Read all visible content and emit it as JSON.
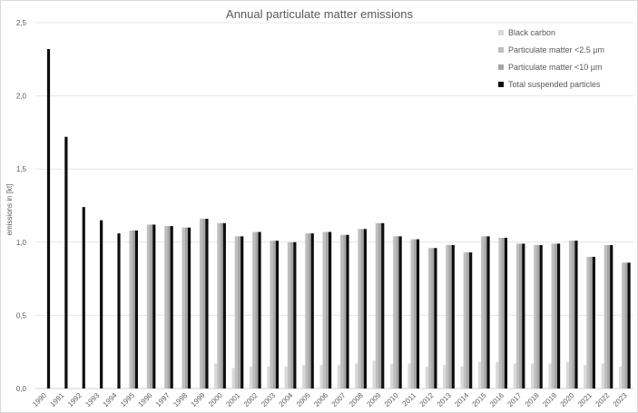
{
  "chart_data": {
    "type": "bar",
    "title": "Annual particulate matter emissions",
    "xlabel": "",
    "ylabel": "emissions in [kt]",
    "ylim": [
      0,
      2.5
    ],
    "yticks": [
      "0,0",
      "0,5",
      "1,0",
      "1,5",
      "2,0",
      "2,5"
    ],
    "grid": true,
    "legend_position": "top-right",
    "categories": [
      "1990",
      "1991",
      "1992",
      "1993",
      "1994",
      "1995",
      "1996",
      "1997",
      "1998",
      "1999",
      "2000",
      "2001",
      "2002",
      "2003",
      "2004",
      "2005",
      "2006",
      "2007",
      "2008",
      "2009",
      "2010",
      "2011",
      "2012",
      "2013",
      "2014",
      "2015",
      "2016",
      "2017",
      "2018",
      "2019",
      "2020",
      "2021",
      "2022",
      "2023"
    ],
    "series": [
      {
        "name": "Black carbon",
        "color": "#d9d9d9",
        "values": [
          null,
          null,
          null,
          null,
          null,
          null,
          null,
          null,
          null,
          null,
          0.17,
          0.14,
          0.15,
          0.15,
          0.15,
          0.16,
          0.16,
          0.16,
          0.17,
          0.19,
          0.17,
          0.17,
          0.15,
          0.16,
          0.15,
          0.18,
          0.18,
          0.17,
          0.17,
          0.17,
          0.18,
          0.16,
          0.17,
          0.15
        ]
      },
      {
        "name": "Particulate matter <2.5 µm",
        "color": "#bfbfbf",
        "values": [
          null,
          null,
          null,
          null,
          null,
          1.08,
          1.12,
          1.11,
          1.1,
          1.16,
          1.13,
          1.04,
          1.07,
          1.01,
          1.0,
          1.06,
          1.07,
          1.05,
          1.09,
          1.13,
          1.04,
          1.02,
          0.96,
          0.98,
          0.93,
          1.04,
          1.03,
          0.99,
          0.98,
          0.99,
          1.01,
          0.9,
          0.98,
          0.86
        ]
      },
      {
        "name": "Particulate matter <10 µm",
        "color": "#a6a6a6",
        "values": [
          null,
          null,
          null,
          null,
          null,
          1.08,
          1.12,
          1.11,
          1.1,
          1.16,
          1.13,
          1.04,
          1.07,
          1.01,
          1.0,
          1.06,
          1.07,
          1.05,
          1.09,
          1.13,
          1.04,
          1.02,
          0.96,
          0.98,
          0.93,
          1.04,
          1.03,
          0.99,
          0.98,
          0.99,
          1.01,
          0.9,
          0.98,
          0.86
        ]
      },
      {
        "name": "Total suspended particles",
        "color": "#0d0d0d",
        "values": [
          2.32,
          1.72,
          1.24,
          1.15,
          1.06,
          1.08,
          1.12,
          1.11,
          1.1,
          1.16,
          1.13,
          1.04,
          1.07,
          1.01,
          1.0,
          1.06,
          1.07,
          1.05,
          1.09,
          1.13,
          1.04,
          1.02,
          0.96,
          0.98,
          0.93,
          1.04,
          1.03,
          0.99,
          0.98,
          0.99,
          1.01,
          0.9,
          0.98,
          0.86
        ]
      }
    ]
  }
}
